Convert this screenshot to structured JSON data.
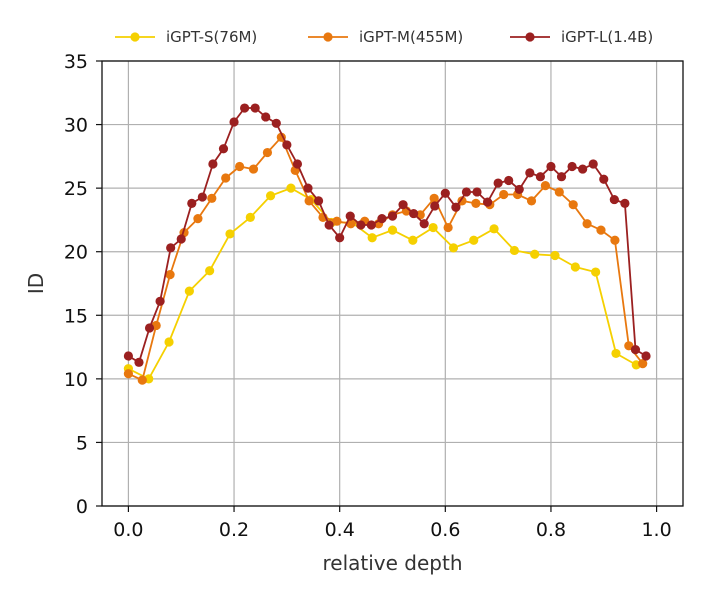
{
  "chart_data": {
    "type": "line",
    "title": "",
    "xlabel": "relative depth",
    "ylabel": "ID",
    "xlim": [
      -0.05,
      1.05
    ],
    "ylim": [
      0,
      35
    ],
    "xticks": [
      0.0,
      0.2,
      0.4,
      0.6,
      0.8,
      1.0
    ],
    "xtick_labels": [
      "0.0",
      "0.2",
      "0.4",
      "0.6",
      "0.8",
      "1.0"
    ],
    "yticks": [
      0,
      5,
      10,
      15,
      20,
      25,
      30,
      35
    ],
    "ytick_labels": [
      "0",
      "5",
      "10",
      "15",
      "20",
      "25",
      "30",
      "35"
    ],
    "grid": true,
    "legend_position": "top",
    "series": [
      {
        "name": "iGPT-S(76M)",
        "color": "#f5d000",
        "x": [
          0.0,
          0.0385,
          0.0769,
          0.1154,
          0.1538,
          0.1923,
          0.2308,
          0.2692,
          0.3077,
          0.3462,
          0.3846,
          0.4231,
          0.4615,
          0.5,
          0.5385,
          0.5769,
          0.6154,
          0.6538,
          0.6923,
          0.7308,
          0.7692,
          0.8077,
          0.8462,
          0.8846,
          0.9231,
          0.9615
        ],
        "y": [
          10.8,
          10.0,
          12.9,
          16.9,
          18.5,
          21.4,
          22.7,
          24.4,
          25.0,
          24.1,
          22.3,
          22.3,
          21.1,
          21.7,
          20.9,
          21.9,
          20.3,
          20.9,
          21.8,
          20.1,
          19.8,
          19.7,
          18.8,
          18.4,
          12.0,
          11.1
        ]
      },
      {
        "name": "iGPT-M(455M)",
        "color": "#e8780f",
        "x": [
          0.0,
          0.0263,
          0.0526,
          0.0789,
          0.1053,
          0.1316,
          0.1579,
          0.1842,
          0.2105,
          0.2368,
          0.2632,
          0.2895,
          0.3158,
          0.3421,
          0.3684,
          0.3947,
          0.4211,
          0.4474,
          0.4737,
          0.5,
          0.5263,
          0.5526,
          0.5789,
          0.6053,
          0.6316,
          0.6579,
          0.6842,
          0.7105,
          0.7368,
          0.7632,
          0.7895,
          0.8158,
          0.8421,
          0.8684,
          0.8947,
          0.9211,
          0.9474,
          0.9737
        ],
        "y": [
          10.4,
          9.9,
          14.2,
          18.2,
          21.5,
          22.6,
          24.2,
          25.8,
          26.7,
          26.5,
          27.8,
          29.0,
          26.4,
          24.0,
          22.7,
          22.4,
          22.2,
          22.4,
          22.2,
          22.9,
          23.2,
          22.9,
          24.2,
          21.9,
          24.0,
          23.8,
          23.7,
          24.5,
          24.5,
          24.0,
          25.2,
          24.7,
          23.7,
          22.2,
          21.7,
          20.9,
          12.6,
          11.2
        ]
      },
      {
        "name": "iGPT-L(1.4B)",
        "color": "#9b2020",
        "x": [
          0.0,
          0.02,
          0.04,
          0.06,
          0.08,
          0.1,
          0.12,
          0.14,
          0.16,
          0.18,
          0.2,
          0.22,
          0.24,
          0.26,
          0.28,
          0.3,
          0.32,
          0.34,
          0.36,
          0.38,
          0.4,
          0.42,
          0.44,
          0.46,
          0.48,
          0.5,
          0.52,
          0.54,
          0.56,
          0.58,
          0.6,
          0.62,
          0.64,
          0.66,
          0.68,
          0.7,
          0.72,
          0.74,
          0.76,
          0.78,
          0.8,
          0.82,
          0.84,
          0.86,
          0.88,
          0.9,
          0.92,
          0.94,
          0.96,
          0.98
        ],
        "y": [
          11.8,
          11.3,
          14.0,
          16.1,
          20.3,
          21.0,
          23.8,
          24.3,
          26.9,
          28.1,
          30.2,
          31.3,
          31.3,
          30.6,
          30.1,
          28.4,
          26.9,
          25.0,
          24.0,
          22.1,
          21.1,
          22.8,
          22.1,
          22.1,
          22.6,
          22.8,
          23.7,
          23.0,
          22.2,
          23.6,
          24.6,
          23.5,
          24.7,
          24.7,
          23.9,
          25.4,
          25.6,
          24.9,
          26.2,
          25.9,
          26.7,
          25.9,
          26.7,
          26.5,
          26.9,
          25.7,
          24.1,
          23.8,
          12.3,
          11.8
        ]
      }
    ]
  }
}
